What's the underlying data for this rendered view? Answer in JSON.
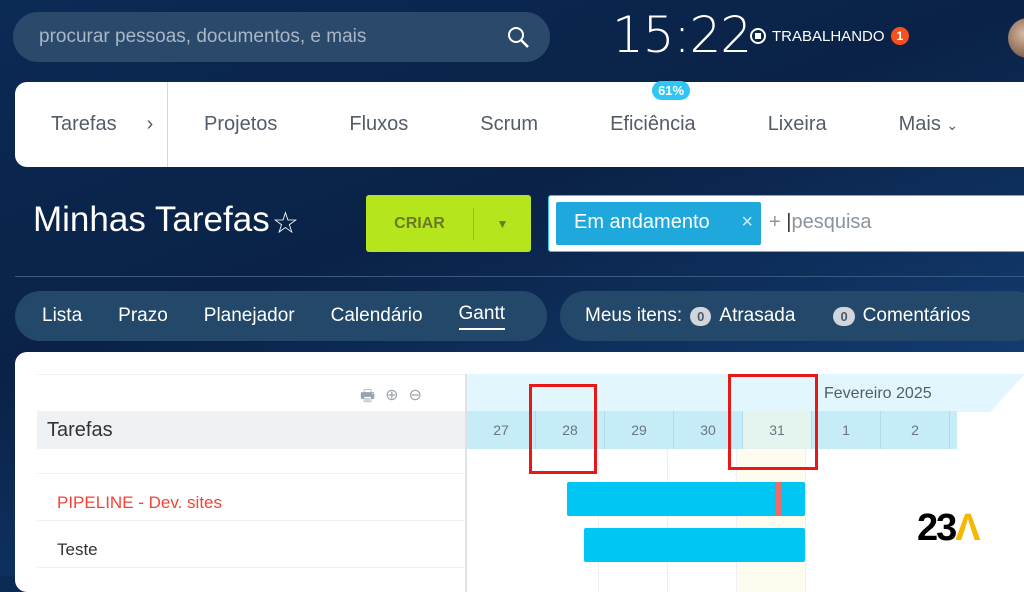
{
  "header": {
    "search_placeholder": "procurar pessoas, documentos, e mais",
    "clock": "15:22",
    "status": "TRABALHANDO",
    "status_badge": "1"
  },
  "nav": {
    "items": [
      "Tarefas",
      "Projetos",
      "Fluxos",
      "Scrum",
      "Eficiência",
      "Lixeira",
      "Mais"
    ],
    "efficiency_badge": "61%"
  },
  "page": {
    "title": "Minhas Tarefas",
    "create_label": "CRIAR",
    "filter_chip": "Em andamento",
    "search_placeholder": "pesquisa"
  },
  "views": {
    "tabs": [
      "Lista",
      "Prazo",
      "Planejador",
      "Calendário",
      "Gantt"
    ],
    "active": "Gantt"
  },
  "meus": {
    "label": "Meus itens:",
    "overdue_count": "0",
    "overdue_label": "Atrasada",
    "comments_count": "0",
    "comments_label": "Comentários"
  },
  "gantt": {
    "column_header": "Tarefas",
    "month": "Fevereiro 2025",
    "days": [
      "27",
      "28",
      "29",
      "30",
      "31",
      "1",
      "2"
    ],
    "tasks": [
      {
        "name": "PIPELINE - Dev. sites",
        "color": "#f44336"
      },
      {
        "name": "Teste",
        "color": "#333333"
      }
    ]
  },
  "logo": "23A",
  "colors": {
    "accent": "#2fc6f6",
    "create": "#b5e61d",
    "bar": "#00c6f3",
    "highlight": "#e81818"
  }
}
